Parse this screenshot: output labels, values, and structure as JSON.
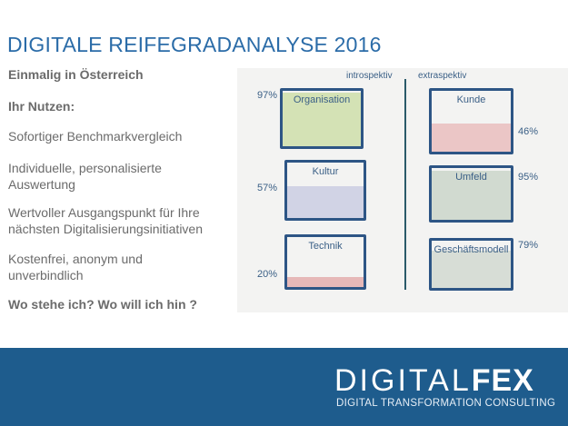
{
  "title": "DIGITALE REIFEGRADANALYSE 2016",
  "items": [
    "Einmalig in Österreich",
    "Ihr Nutzen:",
    "Sofortiger Benchmarkvergleich",
    "Individuelle, personalisierte Auswertung",
    "Wertvoller Ausgangspunkt für Ihre nächsten Digitalisierungsinitiativen",
    "Kostenfrei, anonym und unverbindlich",
    "Wo stehe ich? Wo will ich hin ?"
  ],
  "sketch": {
    "header_left": "introspektiv",
    "header_right": "extraspektiv",
    "boxes": [
      {
        "label": "Organisation",
        "pct": "97%",
        "value": 97,
        "color": "#c9dca0"
      },
      {
        "label": "Kultur",
        "pct": "57%",
        "value": 57,
        "color": "#c5c8e0"
      },
      {
        "label": "Technik",
        "pct": "20%",
        "value": 20,
        "color": "#e1a4a4"
      },
      {
        "label": "Kunde",
        "pct": "46%",
        "value": 46,
        "color": "#e8b7b7"
      },
      {
        "label": "Umfeld",
        "pct": "95%",
        "value": 95,
        "color": "#c6d2c4"
      },
      {
        "label": "Geschäftsmodell",
        "pct": "79%",
        "value": 79,
        "color": "#cdd5cc"
      }
    ]
  },
  "logo": {
    "text_light": "DIGITAL",
    "text_bold": "FEX",
    "tagline": "DIGITAL TRANSFORMATION CONSULTING"
  }
}
